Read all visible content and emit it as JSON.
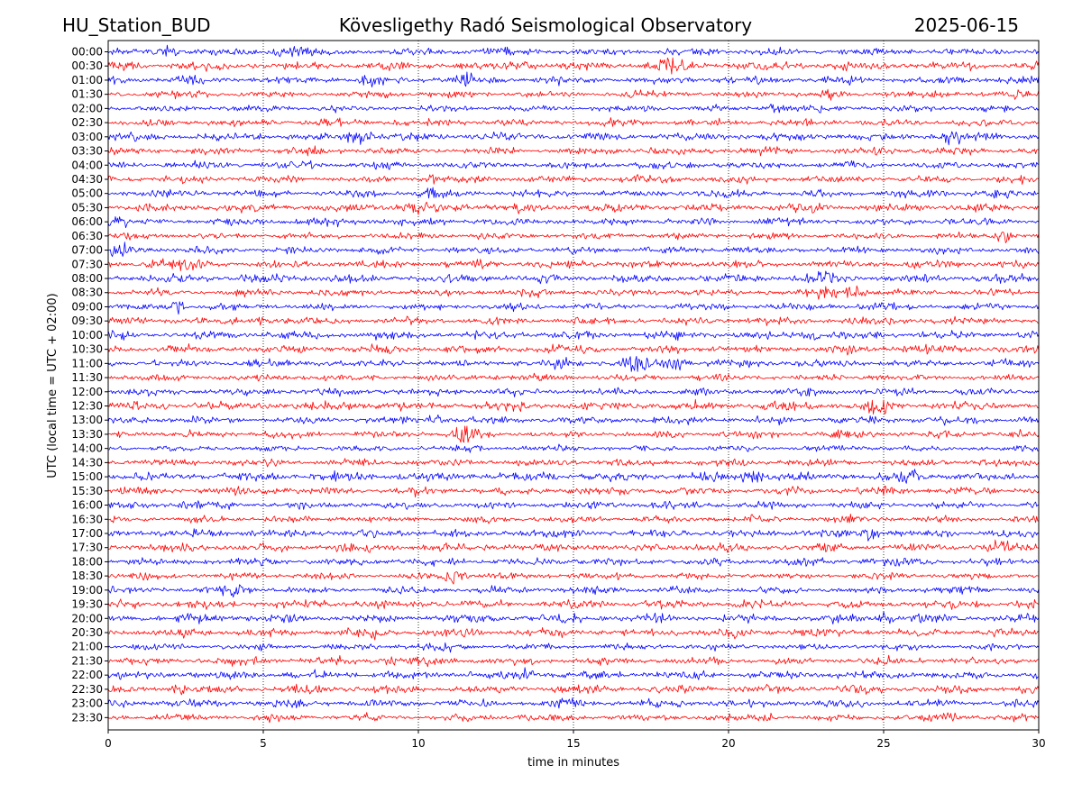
{
  "header": {
    "station": "HU_Station_BUD",
    "observatory": "Kövesligethy Radó Seismological Observatory",
    "date": "2025-06-15"
  },
  "colors": {
    "trace_a": "#0000ff",
    "trace_b": "#ff0000",
    "grid": "#000000",
    "frame": "#000000",
    "background": "#ffffff"
  },
  "chart_data": {
    "type": "line",
    "subtype": "helicorder",
    "xlabel": "time in minutes",
    "ylabel": "UTC (local time = UTC + 02:00)",
    "xlim": [
      0,
      30
    ],
    "xticks": [
      0,
      5,
      10,
      15,
      20,
      25,
      30
    ],
    "xtick_labels": [
      "0",
      "5",
      "10",
      "15",
      "20",
      "25",
      "30"
    ],
    "grid": "vertical dotted lines at x ticks",
    "rows": [
      "00:00",
      "00:30",
      "01:00",
      "01:30",
      "02:00",
      "02:30",
      "03:00",
      "03:30",
      "04:00",
      "04:30",
      "05:00",
      "05:30",
      "06:00",
      "06:30",
      "07:00",
      "07:30",
      "08:00",
      "08:30",
      "09:00",
      "09:30",
      "10:00",
      "10:30",
      "11:00",
      "11:30",
      "12:00",
      "12:30",
      "13:00",
      "13:30",
      "14:00",
      "14:30",
      "15:00",
      "15:30",
      "16:00",
      "16:30",
      "17:00",
      "17:30",
      "18:00",
      "18:30",
      "19:00",
      "19:30",
      "20:00",
      "20:30",
      "21:00",
      "21:30",
      "22:00",
      "22:30",
      "23:00",
      "23:30"
    ],
    "row_colors": "alternating blue / red",
    "bursts": [
      {
        "row": "00:00",
        "minute": 5.5,
        "amp": 2.2
      },
      {
        "row": "00:00",
        "minute": 6.3,
        "amp": 1.8
      },
      {
        "row": "00:00",
        "minute": 1.9,
        "amp": 1.6
      },
      {
        "row": "00:30",
        "minute": 18.2,
        "amp": 2.6
      },
      {
        "row": "00:30",
        "minute": 13.5,
        "amp": 1.7
      },
      {
        "row": "00:30",
        "minute": 2.5,
        "amp": 1.5
      },
      {
        "row": "01:00",
        "minute": 11.5,
        "amp": 1.9
      },
      {
        "row": "01:00",
        "minute": 8.5,
        "amp": 1.6
      },
      {
        "row": "01:30",
        "minute": 23.5,
        "amp": 1.6
      },
      {
        "row": "02:00",
        "minute": 21.5,
        "amp": 2.0
      },
      {
        "row": "03:00",
        "minute": 8.1,
        "amp": 2.2
      },
      {
        "row": "03:00",
        "minute": 27.2,
        "amp": 1.7
      },
      {
        "row": "04:00",
        "minute": 6.5,
        "amp": 1.4
      },
      {
        "row": "04:30",
        "minute": 10.4,
        "amp": 1.9
      },
      {
        "row": "05:00",
        "minute": 10.5,
        "amp": 1.8
      },
      {
        "row": "05:30",
        "minute": 9.8,
        "amp": 1.5
      },
      {
        "row": "06:00",
        "minute": 0.2,
        "amp": 2.2
      },
      {
        "row": "06:30",
        "minute": 28.9,
        "amp": 2.0
      },
      {
        "row": "07:00",
        "minute": 0.5,
        "amp": 2.8
      },
      {
        "row": "07:30",
        "minute": 1.6,
        "amp": 2.0
      },
      {
        "row": "07:30",
        "minute": 2.5,
        "amp": 1.8
      },
      {
        "row": "08:00",
        "minute": 23.0,
        "amp": 1.8
      },
      {
        "row": "08:30",
        "minute": 24.0,
        "amp": 3.0
      },
      {
        "row": "08:30",
        "minute": 23.0,
        "amp": 2.2
      },
      {
        "row": "09:00",
        "minute": 2.2,
        "amp": 2.0
      },
      {
        "row": "09:30",
        "minute": 4.8,
        "amp": 1.6
      },
      {
        "row": "10:00",
        "minute": 22.8,
        "amp": 1.7
      },
      {
        "row": "11:00",
        "minute": 17.0,
        "amp": 2.4
      },
      {
        "row": "11:00",
        "minute": 18.3,
        "amp": 2.2
      },
      {
        "row": "11:00",
        "minute": 14.8,
        "amp": 1.8
      },
      {
        "row": "11:30",
        "minute": 12.2,
        "amp": 1.6
      },
      {
        "row": "12:30",
        "minute": 24.8,
        "amp": 2.5
      },
      {
        "row": "13:00",
        "minute": 10.5,
        "amp": 2.0
      },
      {
        "row": "13:30",
        "minute": 11.5,
        "amp": 3.0
      },
      {
        "row": "15:00",
        "minute": 20.8,
        "amp": 1.8
      },
      {
        "row": "15:00",
        "minute": 25.8,
        "amp": 1.7
      },
      {
        "row": "15:30",
        "minute": 5.4,
        "amp": 1.5
      },
      {
        "row": "16:00",
        "minute": 2.7,
        "amp": 1.7
      },
      {
        "row": "16:30",
        "minute": 24.0,
        "amp": 1.6
      },
      {
        "row": "17:00",
        "minute": 24.5,
        "amp": 2.0
      },
      {
        "row": "17:30",
        "minute": 28.7,
        "amp": 1.6
      },
      {
        "row": "18:30",
        "minute": 11.2,
        "amp": 2.6
      },
      {
        "row": "19:00",
        "minute": 4.2,
        "amp": 2.4
      },
      {
        "row": "20:00",
        "minute": 25.0,
        "amp": 1.6
      },
      {
        "row": "20:30",
        "minute": 8.5,
        "amp": 1.5
      },
      {
        "row": "21:00",
        "minute": 10.8,
        "amp": 1.6
      },
      {
        "row": "21:30",
        "minute": 9.2,
        "amp": 1.6
      },
      {
        "row": "22:00",
        "minute": 13.5,
        "amp": 1.7
      },
      {
        "row": "22:30",
        "minute": 2.2,
        "amp": 1.6
      },
      {
        "row": "23:30",
        "minute": 27.0,
        "amp": 2.0
      },
      {
        "row": "23:30",
        "minute": 21.3,
        "amp": 1.6
      }
    ]
  }
}
